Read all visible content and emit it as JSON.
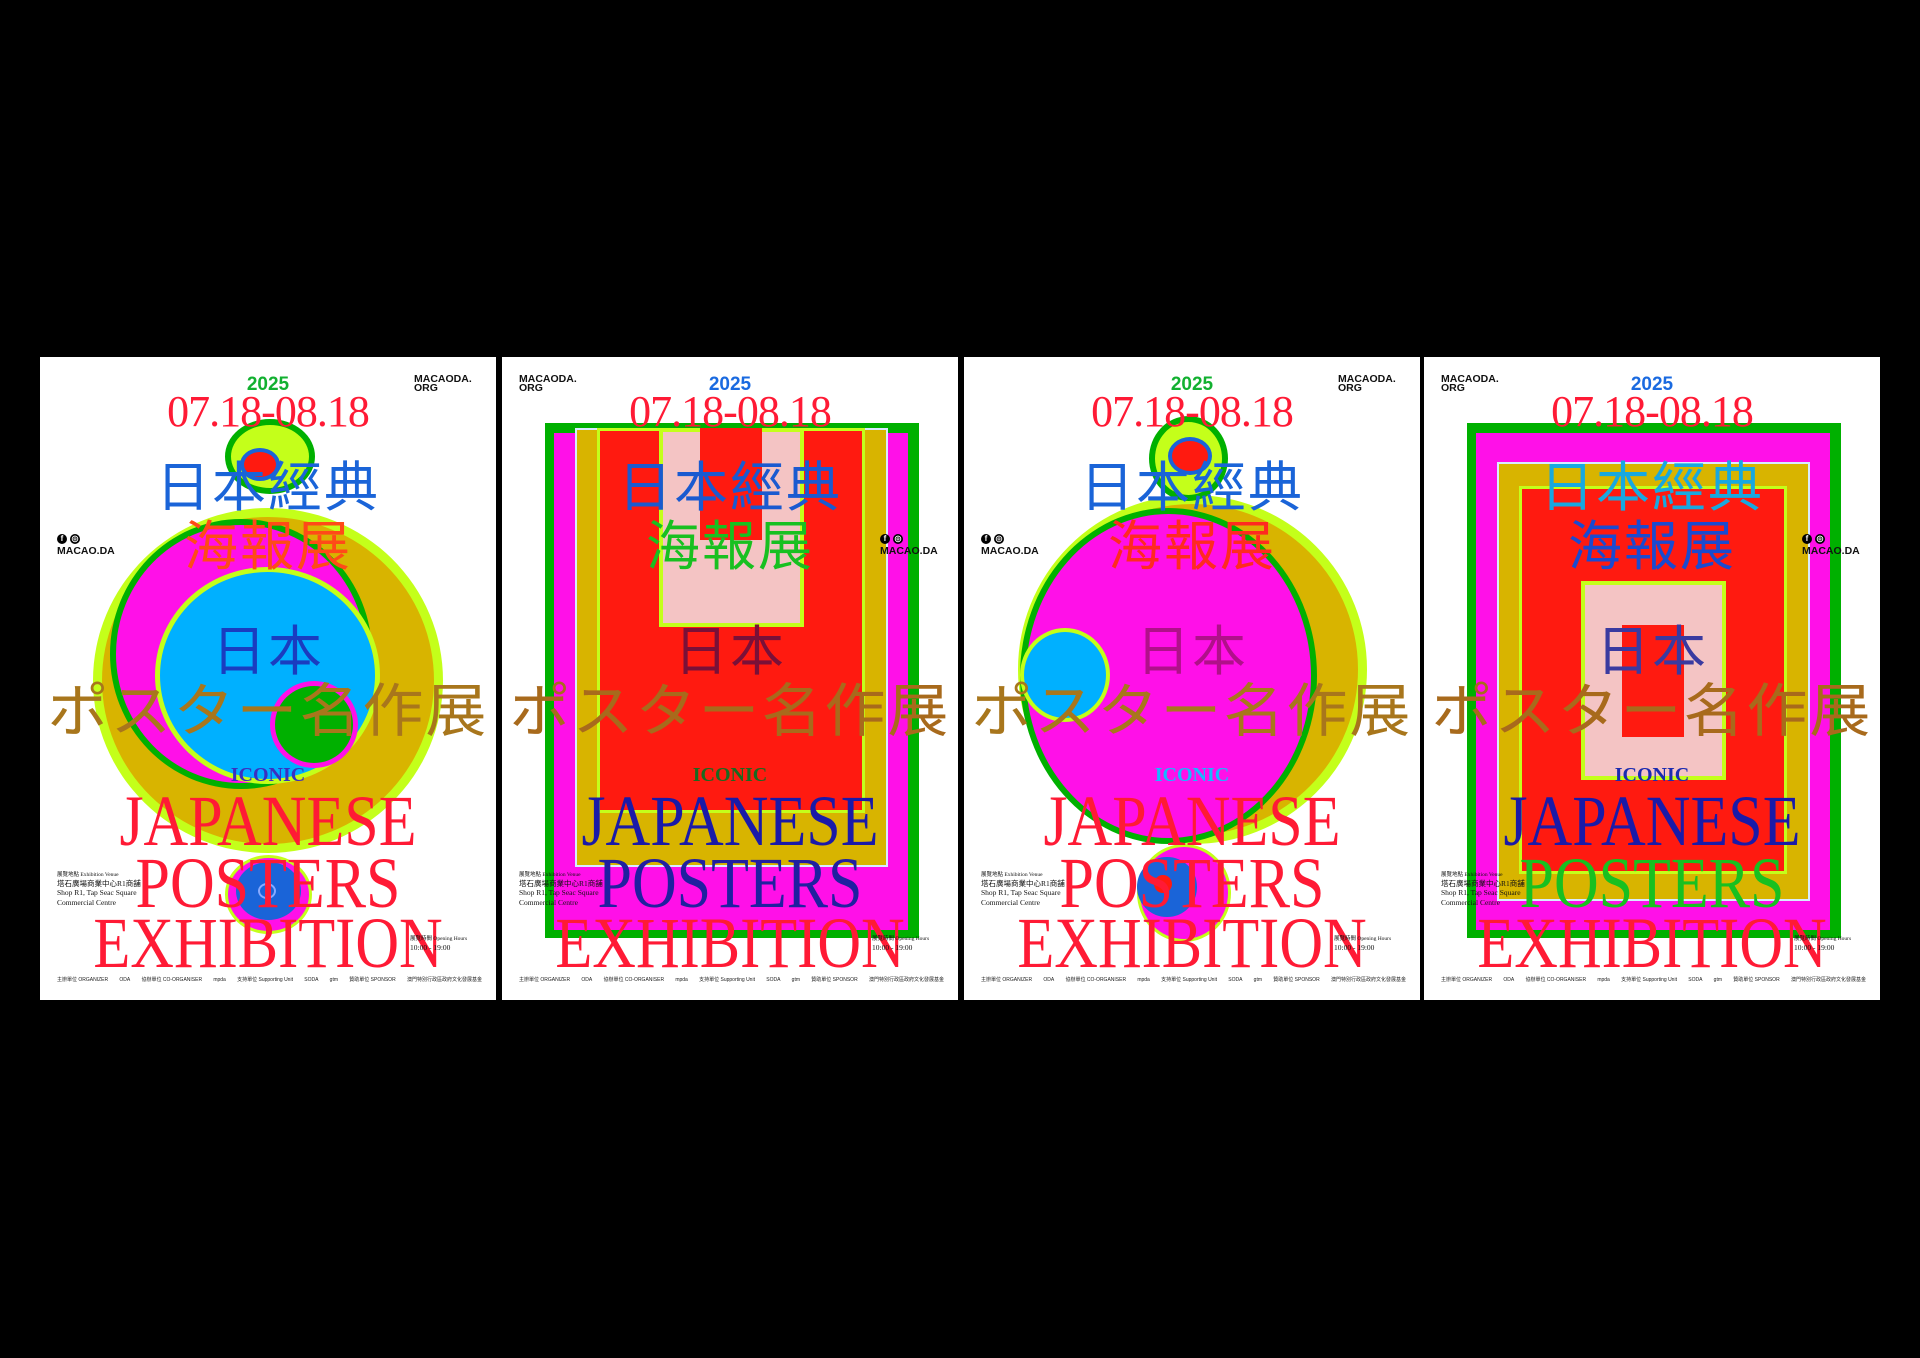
{
  "common": {
    "year": "2025",
    "dates": "07.18-08.18",
    "title_zh_line1": "日本經典",
    "title_zh_line2": "海報展",
    "title_jp_line1": "日本",
    "title_jp_line2": "ポスター名作展",
    "iconic": "ICONIC",
    "title_en_line1": "JAPANESE",
    "title_en_line2": "POSTERS",
    "title_en_line3": "EXHIBITION",
    "website": "MACAODA.\nORG",
    "social_handle": "MACAO.DA",
    "social_icons": [
      "facebook-icon",
      "instagram-icon"
    ],
    "venue_label": "展覽地點 Exhibition Venue",
    "venue_zh": "塔石廣場商業中心R1商舖",
    "venue_en_line1": "Shop R1, Tap Seac Square",
    "venue_en_line2": "Commercial Centre",
    "hours_label": "展覽時間 Opening Hours",
    "hours": "10:00 - 19:00",
    "logos": [
      "主辦單位 ORGANIZER",
      "ODA",
      "協辦單位 CO-ORGANISER",
      "mpda",
      "支持單位 Supporting Unit",
      "SODA",
      "gtm",
      "贊助單位 SPONSOR",
      "澳門特別行政區政府文化發展基金"
    ]
  },
  "posters": [
    {
      "variant": "circles-a",
      "colors": {
        "year": "#12b030",
        "dates": "#ff1a35",
        "zh1": "#1a64d8",
        "zh2": "#ff4a18",
        "jp1": "#1a3cc0",
        "jp2": "#a8761c",
        "iconic": "#3a2fc0",
        "en1": "#ff1a35",
        "en2": "#ff1a35",
        "en3": "#ff1a35"
      }
    },
    {
      "variant": "rects-a",
      "colors": {
        "year": "#1a6ae0",
        "dates": "#ff1a35",
        "zh1": "#1a5ad0",
        "zh2": "#18c020",
        "jp1": "#7a1038",
        "jp2": "#a86a1c",
        "iconic": "#1a6a20",
        "en1": "#1a1aa8",
        "en2": "#2020a0",
        "en3": "#ff1a35"
      }
    },
    {
      "variant": "circles-b",
      "colors": {
        "year": "#12b030",
        "dates": "#ff1a35",
        "zh1": "#1a64d8",
        "zh2": "#ff2a20",
        "jp1": "#b0108a",
        "jp2": "#a8761c",
        "iconic": "#18b8ff",
        "en1": "#ff1a35",
        "en2": "#ff1a35",
        "en3": "#ff1a35"
      }
    },
    {
      "variant": "rects-b",
      "colors": {
        "year": "#1a6ae0",
        "dates": "#ff1a35",
        "zh1": "#18a8e0",
        "zh2": "#1a4ad0",
        "jp1": "#3a3aa0",
        "jp2": "#a86a1c",
        "iconic": "#1a2ab0",
        "en1": "#1a1aa8",
        "en2": "#18c020",
        "en3": "#ff1a35"
      }
    }
  ],
  "palette": {
    "green": "#00b000",
    "lime": "#c4ff1a",
    "magenta": "#ff10e8",
    "mustard": "#d8b400",
    "red": "#ff1a10",
    "pink": "#f4c4c4",
    "sky": "#00b0ff",
    "blue": "#1a64d8"
  }
}
